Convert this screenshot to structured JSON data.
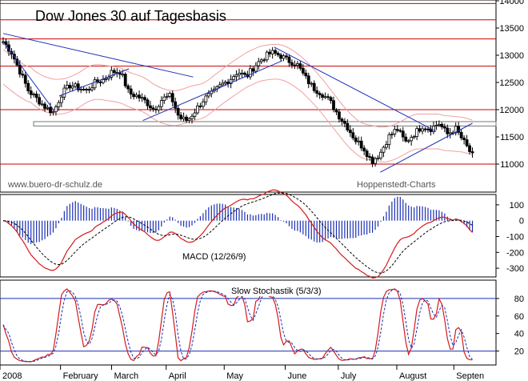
{
  "chart_data": [
    {
      "type": "candlestick",
      "title": "Dow Jones 30 auf Tagesbasis",
      "credit_left": "www.buero-dr-schulz.de",
      "credit_right": "Hoppenstedt-Charts",
      "ylim": [
        10500,
        14000
      ],
      "y_ticks": [
        11000,
        11500,
        12000,
        12500,
        13000,
        13500,
        14000
      ],
      "y_tick_labels": [
        "11000",
        "11500",
        "12000",
        "12500",
        "13000",
        "13500",
        "14000"
      ],
      "horizontal_levels": [
        11000,
        12000,
        12800,
        13300,
        13650,
        13950
      ],
      "support_zone": [
        11700,
        11780
      ],
      "closes": [
        13250,
        13050,
        12700,
        12350,
        12200,
        12050,
        11950,
        12300,
        12450,
        12400,
        12350,
        12500,
        12550,
        12700,
        12700,
        12300,
        12250,
        12150,
        12000,
        12200,
        12250,
        11850,
        11800,
        12000,
        12200,
        12300,
        12450,
        12550,
        12700,
        12600,
        12800,
        12950,
        13050,
        13000,
        12900,
        12850,
        12600,
        12400,
        12300,
        12150,
        11900,
        11700,
        11450,
        11300,
        11050,
        11200,
        11500,
        11650,
        11400,
        11550,
        11700,
        11650,
        11750,
        11550,
        11650,
        11400,
        11150
      ],
      "series": [
        {
          "name": "Dow Jones 30",
          "values": []
        }
      ]
    },
    {
      "type": "bar",
      "label": "MACD (12/26/9)",
      "ylim": [
        -350,
        160
      ],
      "y_ticks": [
        -300,
        -200,
        -100,
        0,
        100
      ],
      "y_tick_labels": [
        "-300",
        "-200",
        "-100",
        "0",
        "100"
      ]
    },
    {
      "type": "line",
      "label": "Slow Stochastik (5/3/3)",
      "ylim": [
        5,
        100
      ],
      "y_ticks": [
        20,
        40,
        60,
        80
      ],
      "y_tick_labels": [
        "20",
        "40",
        "60",
        "80"
      ],
      "reference_levels": [
        20,
        80
      ]
    }
  ],
  "x_axis": {
    "labels": [
      {
        "text": "2008",
        "frac": 0.0
      },
      {
        "text": "February",
        "frac": 0.122
      },
      {
        "text": "March",
        "frac": 0.225
      },
      {
        "text": "April",
        "frac": 0.335
      },
      {
        "text": "May",
        "frac": 0.452
      },
      {
        "text": "June",
        "frac": 0.575
      },
      {
        "text": "July",
        "frac": 0.682
      },
      {
        "text": "August",
        "frac": 0.8
      },
      {
        "text": "Septen",
        "frac": 0.915
      }
    ]
  },
  "colors": {
    "price": "#000000",
    "level_lines": "#cc0000",
    "trendlines": "#1a2fb3",
    "bands": "#f2a0a0",
    "macd_hist": "#1a2fb3",
    "macd_line": "#d41b1b",
    "signal_line": "#000000",
    "stoch_k": "#d41b1b",
    "stoch_d": "#1a2fb3",
    "stoch_ref": "#1a2fb3"
  }
}
